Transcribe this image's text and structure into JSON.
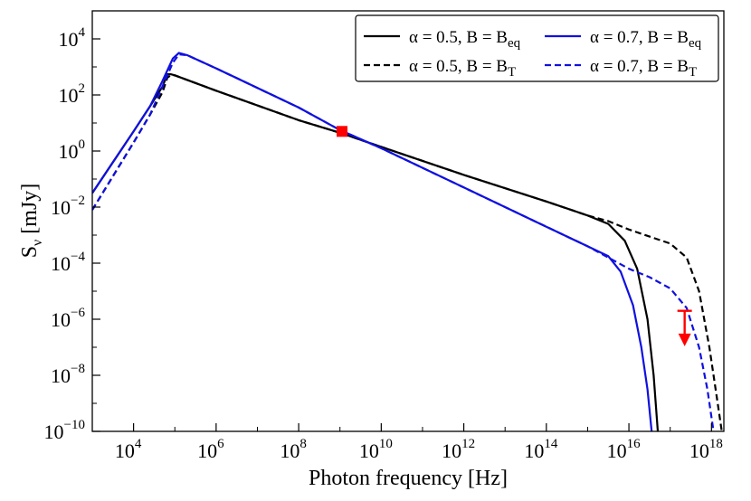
{
  "chart_data": {
    "type": "line",
    "xlabel": "Photon frequency [Hz]",
    "ylabel_main": "S",
    "ylabel_sub": "ν",
    "ylabel_unit": " [mJy]",
    "x_scale": "log",
    "y_scale": "log",
    "xlim_log10": [
      3,
      18.3
    ],
    "ylim_log10": [
      -10,
      5.0
    ],
    "x_ticks": [
      {
        "base": "10",
        "exp": "4",
        "log": 4
      },
      {
        "base": "10",
        "exp": "6",
        "log": 6
      },
      {
        "base": "10",
        "exp": "8",
        "log": 8
      },
      {
        "base": "10",
        "exp": "10",
        "log": 10
      },
      {
        "base": "10",
        "exp": "12",
        "log": 12
      },
      {
        "base": "10",
        "exp": "14",
        "log": 14
      },
      {
        "base": "10",
        "exp": "16",
        "log": 16
      },
      {
        "base": "10",
        "exp": "18",
        "log": 18
      }
    ],
    "y_ticks": [
      {
        "base": "10",
        "exp": "4",
        "log": 4
      },
      {
        "base": "10",
        "exp": "2",
        "log": 2
      },
      {
        "base": "10",
        "exp": "0",
        "log": 0
      },
      {
        "base": "10",
        "exp": "−2",
        "log": -2
      },
      {
        "base": "10",
        "exp": "−4",
        "log": -4
      },
      {
        "base": "10",
        "exp": "−6",
        "log": -6
      },
      {
        "base": "10",
        "exp": "−8",
        "log": -8
      },
      {
        "base": "10",
        "exp": "−10",
        "log": -10
      }
    ],
    "legend": {
      "placement": "top-right",
      "entries": [
        {
          "prefix": "α = 0.5, B = B",
          "sub": "eq",
          "color": "#000000",
          "dashed": false
        },
        {
          "prefix": "α = 0.7, B = B",
          "sub": "eq",
          "color": "#1010e0",
          "dashed": false
        },
        {
          "prefix": "α = 0.5, B = B",
          "sub": "T",
          "color": "#000000",
          "dashed": true
        },
        {
          "prefix": "α = 0.7, B = B",
          "sub": "T",
          "color": "#1010e0",
          "dashed": true
        }
      ]
    },
    "series": [
      {
        "name": "α = 0.5, B = Beq",
        "color": "#000000",
        "dashed": false,
        "points": [
          [
            3.0,
            -1.5
          ],
          [
            3.5,
            -0.4
          ],
          [
            4.0,
            0.7
          ],
          [
            4.4,
            1.6
          ],
          [
            4.7,
            2.3
          ],
          [
            4.82,
            2.74
          ],
          [
            4.9,
            2.74
          ],
          [
            5.0,
            2.7
          ],
          [
            6,
            2.15
          ],
          [
            8,
            1.1
          ],
          [
            9.0,
            0.65
          ],
          [
            10,
            0.15
          ],
          [
            12,
            -0.85
          ],
          [
            14,
            -1.8
          ],
          [
            15.0,
            -2.3
          ],
          [
            15.5,
            -2.6
          ],
          [
            15.9,
            -3.2
          ],
          [
            16.2,
            -4.2
          ],
          [
            16.45,
            -6.0
          ],
          [
            16.6,
            -8.0
          ],
          [
            16.7,
            -10.0
          ]
        ]
      },
      {
        "name": "α = 0.5, B = BT",
        "color": "#000000",
        "dashed": true,
        "points": [
          [
            3.0,
            -2.1
          ],
          [
            3.5,
            -0.9
          ],
          [
            4.0,
            0.3
          ],
          [
            4.4,
            1.3
          ],
          [
            4.7,
            2.1
          ],
          [
            4.82,
            2.62
          ],
          [
            4.9,
            2.7
          ],
          [
            5.0,
            2.7
          ],
          [
            6,
            2.15
          ],
          [
            8,
            1.1
          ],
          [
            9.0,
            0.65
          ],
          [
            10,
            0.15
          ],
          [
            12,
            -0.85
          ],
          [
            14,
            -1.8
          ],
          [
            15.0,
            -2.3
          ],
          [
            15.5,
            -2.5
          ],
          [
            16.0,
            -2.8
          ],
          [
            16.5,
            -3.05
          ],
          [
            17.0,
            -3.3
          ],
          [
            17.4,
            -3.8
          ],
          [
            17.7,
            -5.0
          ],
          [
            17.95,
            -7.0
          ],
          [
            18.15,
            -9.0
          ],
          [
            18.25,
            -10.0
          ]
        ]
      },
      {
        "name": "α = 0.7, B = Beq",
        "color": "#1010e0",
        "dashed": false,
        "points": [
          [
            3.0,
            -1.5
          ],
          [
            3.5,
            -0.4
          ],
          [
            4.0,
            0.7
          ],
          [
            4.4,
            1.6
          ],
          [
            4.7,
            2.5
          ],
          [
            4.95,
            3.3
          ],
          [
            5.1,
            3.5
          ],
          [
            5.3,
            3.42
          ],
          [
            6,
            2.95
          ],
          [
            8,
            1.55
          ],
          [
            9.0,
            0.75
          ],
          [
            10,
            0.1
          ],
          [
            12,
            -1.3
          ],
          [
            14,
            -2.7
          ],
          [
            15.0,
            -3.4
          ],
          [
            15.5,
            -3.75
          ],
          [
            15.8,
            -4.3
          ],
          [
            16.1,
            -5.5
          ],
          [
            16.3,
            -7.0
          ],
          [
            16.45,
            -8.5
          ],
          [
            16.55,
            -10.0
          ]
        ]
      },
      {
        "name": "α = 0.7, B = BT",
        "color": "#1010e0",
        "dashed": true,
        "points": [
          [
            3.0,
            -2.1
          ],
          [
            3.5,
            -0.9
          ],
          [
            4.0,
            0.3
          ],
          [
            4.4,
            1.3
          ],
          [
            4.7,
            2.3
          ],
          [
            4.95,
            3.15
          ],
          [
            5.1,
            3.45
          ],
          [
            5.3,
            3.42
          ],
          [
            6,
            2.95
          ],
          [
            8,
            1.55
          ],
          [
            9.0,
            0.75
          ],
          [
            10,
            0.1
          ],
          [
            12,
            -1.3
          ],
          [
            14,
            -2.7
          ],
          [
            15.0,
            -3.4
          ],
          [
            15.5,
            -3.8
          ],
          [
            16.0,
            -4.2
          ],
          [
            16.5,
            -4.5
          ],
          [
            17.0,
            -4.9
          ],
          [
            17.4,
            -5.6
          ],
          [
            17.7,
            -7.0
          ],
          [
            17.9,
            -8.5
          ],
          [
            18.05,
            -10.0
          ]
        ]
      }
    ],
    "markers": [
      {
        "name": "detection",
        "x_log10": 9.05,
        "y_log10": 0.7,
        "color": "#ff0000",
        "shape": "square"
      }
    ],
    "upper_limits": [
      {
        "name": "x-ray-upper-limit",
        "x_log10": 17.35,
        "y_log10": -5.7,
        "arrow_to_log10": -6.9,
        "color": "#ff0000"
      }
    ]
  }
}
